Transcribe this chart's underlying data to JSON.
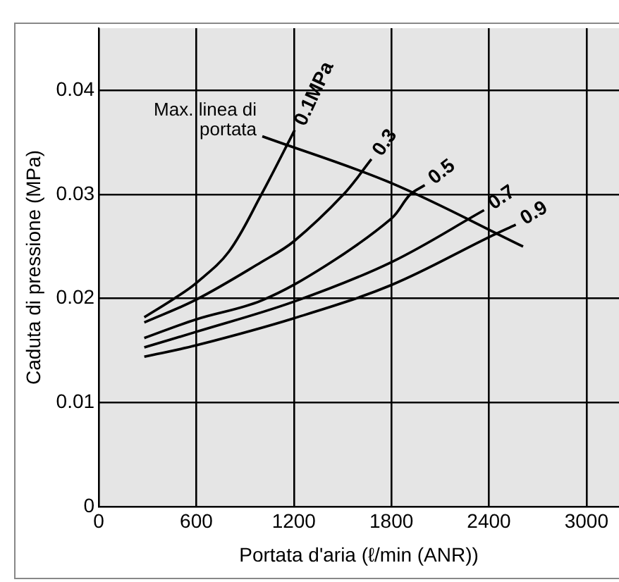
{
  "chart_data": {
    "type": "line",
    "xlabel": "Portata d'aria (ℓ/min (ANR))",
    "ylabel": "Caduta di pressione (MPa)",
    "xlim": [
      0,
      3200
    ],
    "xticks": [
      0,
      600,
      1200,
      1800,
      2400,
      3000
    ],
    "ylim": [
      0,
      0.046
    ],
    "yticks": [
      0,
      0.01,
      0.02,
      0.03,
      0.04
    ],
    "grid": true,
    "legend": false,
    "marker": "none",
    "line_style": "solid",
    "series": [
      {
        "name": "0.1MPa",
        "color": "#000000",
        "x": [
          280,
          464,
          600,
          800,
          1000,
          1205
        ],
        "values": [
          0.0182,
          0.02,
          0.0215,
          0.0245,
          0.03,
          0.0362
        ]
      },
      {
        "name": "0.3",
        "color": "#000000",
        "x": [
          280,
          600,
          1000,
          1200,
          1505,
          1677
        ],
        "values": [
          0.0177,
          0.0199,
          0.0235,
          0.0255,
          0.03,
          0.0334
        ]
      },
      {
        "name": "0.5",
        "color": "#000000",
        "x": [
          280,
          600,
          1000,
          1400,
          1800,
          1915,
          2005
        ],
        "values": [
          0.0162,
          0.018,
          0.0198,
          0.0232,
          0.0277,
          0.03,
          0.0309
        ]
      },
      {
        "name": "0.7",
        "color": "#000000",
        "x": [
          280,
          600,
          1200,
          1800,
          2370
        ],
        "values": [
          0.0153,
          0.0168,
          0.0197,
          0.0235,
          0.0285
        ]
      },
      {
        "name": "0.9",
        "color": "#000000",
        "x": [
          280,
          600,
          1200,
          1800,
          2400,
          2565
        ],
        "values": [
          0.0144,
          0.0155,
          0.0181,
          0.0213,
          0.0259,
          0.0271
        ]
      },
      {
        "color": "#000000",
        "x": [
          1006,
          1800,
          2610
        ],
        "values": [
          0.0356,
          0.0311,
          0.025
        ]
      }
    ],
    "annotations": [
      "Max. linea di\nportata"
    ]
  }
}
